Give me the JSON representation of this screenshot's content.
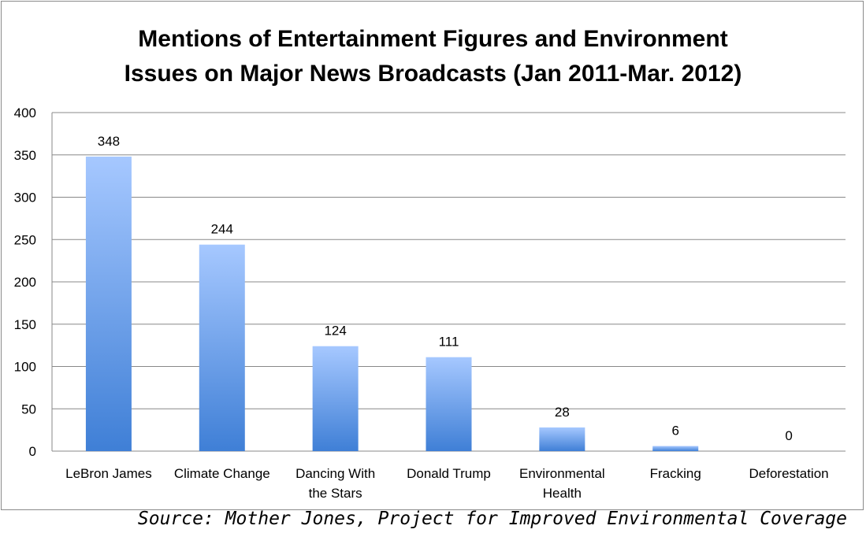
{
  "chart_data": {
    "type": "bar",
    "title_lines": [
      "Mentions of Entertainment Figures and Environment",
      "Issues on Major News Broadcasts (Jan 2011-Mar. 2012)"
    ],
    "categories": [
      [
        "LeBron James"
      ],
      [
        "Climate Change"
      ],
      [
        "Dancing With",
        "the Stars"
      ],
      [
        "Donald Trump"
      ],
      [
        "Environmental",
        "Health"
      ],
      [
        "Fracking"
      ],
      [
        "Deforestation"
      ]
    ],
    "values": [
      348,
      244,
      124,
      111,
      28,
      6,
      0
    ],
    "data_labels": [
      "348",
      "244",
      "124",
      "111",
      "28",
      "6",
      "0"
    ],
    "ylim": [
      0,
      400
    ],
    "yticks": [
      0,
      50,
      100,
      150,
      200,
      250,
      300,
      350,
      400
    ],
    "grid": true,
    "legend": "none",
    "colors": {
      "bar_top": "#a6c8ff",
      "bar_bottom": "#3f7fd6",
      "grid": "#888888"
    }
  },
  "source": "Source: Mother Jones, Project for Improved Environmental Coverage"
}
